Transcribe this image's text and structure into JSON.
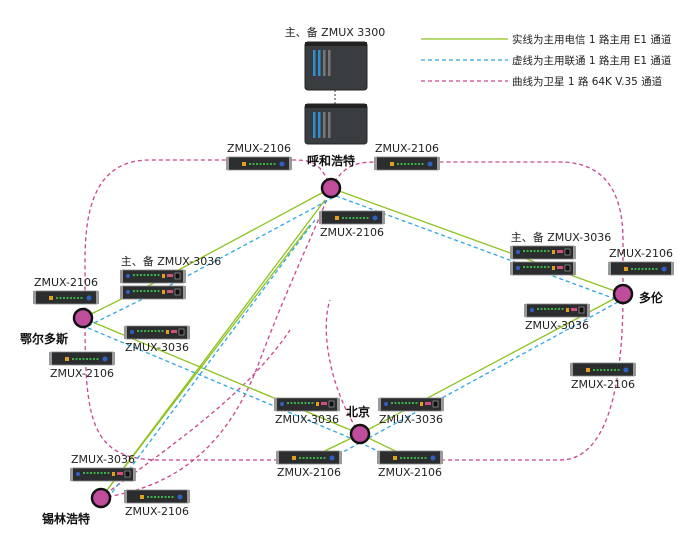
{
  "colors": {
    "telecom": "#8dc21f",
    "unicom": "#29a8e0",
    "satellite": "#c9468e",
    "node": "#c04c9c"
  },
  "legend": [
    {
      "style": "solid",
      "color": "#8dc21f",
      "text": "实线为主用电信 1 路主用 E1 通道"
    },
    {
      "style": "dashed",
      "color": "#29a8e0",
      "text": "虚线为主用联通 1 路主用 E1 通道"
    },
    {
      "style": "dashed",
      "color": "#c9468e",
      "text": "曲线为卫星 1 路 64K V.35 通道"
    }
  ],
  "core": {
    "label": "主、备 ZMUX 3300"
  },
  "cities": [
    "呼和浩特",
    "鄂尔多斯",
    "多伦",
    "北京",
    "锡林浩特"
  ],
  "devices": [
    {
      "model": "2106",
      "label": "ZMUX-2106"
    },
    {
      "model": "2106",
      "label": "ZMUX-2106"
    },
    {
      "model": "2106",
      "label": "ZMUX-2106"
    },
    {
      "model": "3036",
      "label": "主、备 ZMUX-3036",
      "pair": true
    },
    {
      "model": "2106",
      "label": "ZMUX-2106"
    },
    {
      "model": "3036",
      "label": "ZMUX-3036"
    },
    {
      "model": "2106",
      "label": "ZMUX-2106"
    },
    {
      "model": "3036",
      "label": "主、备 ZMUX-3036",
      "pair": true
    },
    {
      "model": "2106",
      "label": "ZMUX-2106"
    },
    {
      "model": "3036",
      "label": "ZMUX-3036"
    },
    {
      "model": "2106",
      "label": "ZMUX-2106"
    },
    {
      "model": "3036",
      "label": "ZMUX-3036"
    },
    {
      "model": "3036",
      "label": "ZMUX-3036"
    },
    {
      "model": "2106",
      "label": "ZMUX-2106"
    },
    {
      "model": "2106",
      "label": "ZMUX-2106"
    },
    {
      "model": "3036",
      "label": "ZMUX-3036"
    },
    {
      "model": "2106",
      "label": "ZMUX-2106"
    }
  ]
}
